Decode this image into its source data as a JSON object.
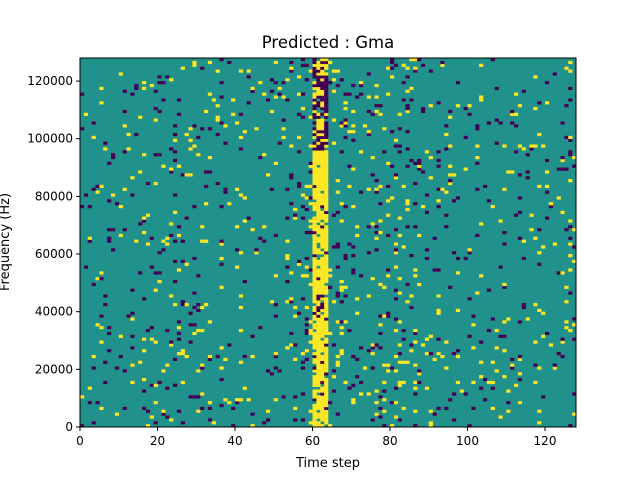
{
  "chart_data": {
    "type": "heatmap",
    "title": "Predicted : Gma",
    "xlabel": "Time step",
    "ylabel": "Frequency (Hz)",
    "xlim": [
      0,
      128
    ],
    "ylim": [
      0,
      128000
    ],
    "x_ticks": [
      0,
      20,
      40,
      60,
      80,
      100,
      120
    ],
    "y_ticks": [
      0,
      20000,
      40000,
      60000,
      80000,
      100000,
      120000
    ],
    "x_tick_labels": [
      "0",
      "20",
      "40",
      "60",
      "80",
      "100",
      "120"
    ],
    "y_tick_labels": [
      "0",
      "20000",
      "40000",
      "60000",
      "80000",
      "100000",
      "120000"
    ],
    "colormap": "viridis",
    "colors": {
      "low": "#440154",
      "mid": "#21918c",
      "high": "#fde725"
    },
    "levels": [
      "low",
      "mid",
      "high"
    ],
    "background_level": "mid",
    "grid": false,
    "n_time_steps": 128,
    "n_frequency_bins": 128,
    "bright_band_time_range": [
      60,
      64
    ]
  }
}
